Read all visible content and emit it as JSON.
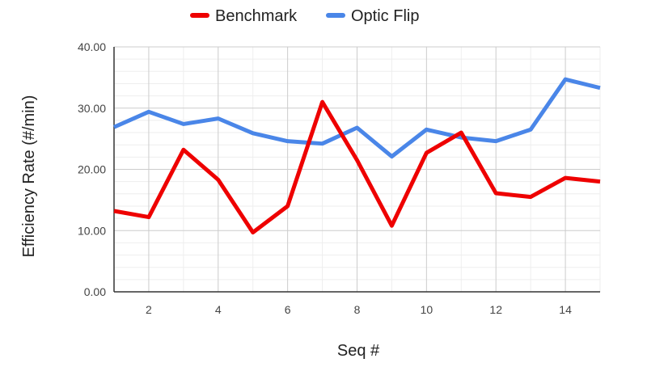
{
  "chart_data": {
    "type": "line",
    "title": "",
    "xlabel": "Seq #",
    "ylabel": "Efficiency Rate (#/min)",
    "xlim": [
      1,
      15
    ],
    "ylim": [
      0,
      40
    ],
    "x": [
      1,
      2,
      3,
      4,
      5,
      6,
      7,
      8,
      9,
      10,
      11,
      12,
      13,
      14,
      15
    ],
    "x_ticks": [
      2,
      4,
      6,
      8,
      10,
      12,
      14
    ],
    "x_tick_labels": [
      "2",
      "4",
      "6",
      "8",
      "10",
      "12",
      "14"
    ],
    "y_ticks": [
      0,
      10,
      20,
      30,
      40
    ],
    "y_tick_labels": [
      "0.00",
      "10.00",
      "20.00",
      "30.00",
      "40.00"
    ],
    "grid": true,
    "legend": "top-center",
    "series": [
      {
        "name": "Benchmark",
        "color": "#ee0000",
        "values": [
          13.2,
          12.2,
          23.2,
          18.3,
          9.7,
          14.0,
          31.0,
          21.5,
          10.8,
          22.7,
          26.0,
          16.1,
          15.5,
          18.6,
          18.0
        ]
      },
      {
        "name": "Optic Flip",
        "color": "#4a86e8",
        "values": [
          26.9,
          29.4,
          27.4,
          28.3,
          25.9,
          24.6,
          24.2,
          26.8,
          22.1,
          26.5,
          25.2,
          24.6,
          26.5,
          34.7,
          33.3
        ]
      }
    ]
  }
}
